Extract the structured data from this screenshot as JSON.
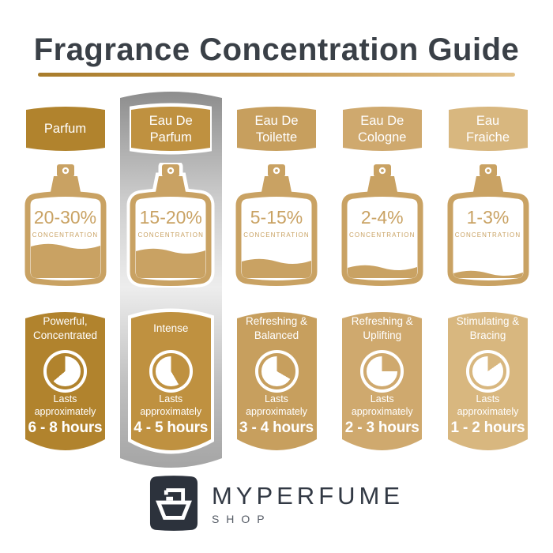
{
  "title": "Fragrance Concentration Guide",
  "bottle_color": "#c9a263",
  "silver_highlight": "#c0c0c0",
  "title_color": "#3a4047",
  "underline_gradient": [
    "#a87c2b",
    "#e2c189"
  ],
  "columns": [
    {
      "name": "parfum",
      "accent": "#b1832d",
      "highlighted": false,
      "tab_lines": [
        "Parfum"
      ],
      "bottle": {
        "percent": "20-30%",
        "caption": "CONCENTRATION",
        "fill_percent": 40
      },
      "card": {
        "title_lines": [
          "Powerful,",
          "Concentrated"
        ],
        "lasts_lines": [
          "Lasts",
          "approximately"
        ],
        "duration": "6 - 8 hours",
        "pie_gap": [
          230,
          360
        ]
      }
    },
    {
      "name": "eau-de-parfum",
      "accent": "#bf9140",
      "highlighted": true,
      "tab_lines": [
        "Eau De",
        "Parfum"
      ],
      "bottle": {
        "percent": "15-20%",
        "caption": "CONCENTRATION",
        "fill_percent": 34
      },
      "card": {
        "title_lines": [
          "Intense"
        ],
        "lasts_lines": [
          "Lasts",
          "approximately"
        ],
        "duration": "4 - 5 hours",
        "pie_gap": [
          0,
          150
        ]
      }
    },
    {
      "name": "eau-de-toilette",
      "accent": "#c79f5e",
      "highlighted": false,
      "tab_lines": [
        "Eau De",
        "Toilette"
      ],
      "bottle": {
        "percent": "5-15%",
        "caption": "CONCENTRATION",
        "fill_percent": 21
      },
      "card": {
        "title_lines": [
          "Refreshing &",
          "Balanced"
        ],
        "lasts_lines": [
          "Lasts",
          "approximately"
        ],
        "duration": "3 - 4 hours",
        "pie_gap": [
          0,
          120
        ]
      }
    },
    {
      "name": "eau-de-cologne",
      "accent": "#cfa96e",
      "highlighted": false,
      "tab_lines": [
        "Eau De",
        "Cologne"
      ],
      "bottle": {
        "percent": "2-4%",
        "caption": "CONCENTRATION",
        "fill_percent": 13
      },
      "card": {
        "title_lines": [
          "Refreshing &",
          "Uplifting"
        ],
        "lasts_lines": [
          "Lasts",
          "approximately"
        ],
        "duration": "2 - 3 hours",
        "pie_gap": [
          0,
          90
        ]
      }
    },
    {
      "name": "eau-fraiche",
      "accent": "#d8b77f",
      "highlighted": false,
      "tab_lines": [
        "Eau",
        "Fraiche"
      ],
      "bottle": {
        "percent": "1-3%",
        "caption": "CONCENTRATION",
        "fill_percent": 6
      },
      "card": {
        "title_lines": [
          "Stimulating &",
          "Bracing"
        ],
        "lasts_lines": [
          "Lasts",
          "approximately"
        ],
        "duration": "1 - 2 hours",
        "pie_gap": [
          0,
          55
        ]
      }
    }
  ],
  "footer": {
    "brand": "MYPERFUME",
    "sub": "SHOP"
  }
}
